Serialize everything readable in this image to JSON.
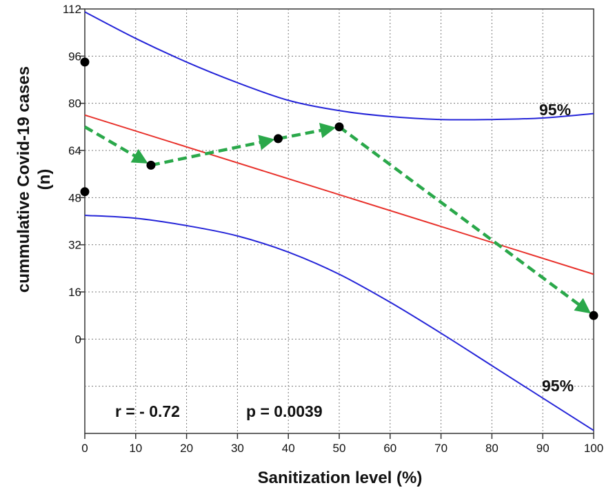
{
  "chart_data": {
    "type": "scatter",
    "xlabel": "Sanitization level (%)",
    "ylabel_lines": [
      "cummulative Covid-19 cases",
      "(n)"
    ],
    "xlim": [
      0,
      100
    ],
    "ylim": [
      -32,
      112
    ],
    "xticks": [
      0,
      10,
      20,
      30,
      40,
      50,
      60,
      70,
      80,
      90,
      100
    ],
    "yticks": [
      112,
      96,
      80,
      64,
      48,
      32,
      16,
      0
    ],
    "grid": true,
    "points": [
      {
        "x": 0,
        "y": 94
      },
      {
        "x": 0,
        "y": 50
      },
      {
        "x": 13,
        "y": 59
      },
      {
        "x": 38,
        "y": 68
      },
      {
        "x": 50,
        "y": 72
      },
      {
        "x": 100,
        "y": 8
      }
    ],
    "regression_line": {
      "color": "#e8302a",
      "points": [
        [
          0,
          76
        ],
        [
          100,
          22
        ]
      ]
    },
    "ci_upper": {
      "label": "95%",
      "color": "#2424d8",
      "points": [
        [
          0,
          111
        ],
        [
          10,
          102
        ],
        [
          20,
          94
        ],
        [
          30,
          87
        ],
        [
          40,
          81
        ],
        [
          50,
          77.5
        ],
        [
          60,
          75.5
        ],
        [
          70,
          74.5
        ],
        [
          80,
          74.5
        ],
        [
          90,
          75
        ],
        [
          100,
          76.5
        ]
      ]
    },
    "ci_lower": {
      "label": "95%",
      "color": "#2424d8",
      "points": [
        [
          0,
          42
        ],
        [
          10,
          41
        ],
        [
          20,
          38.5
        ],
        [
          30,
          35
        ],
        [
          40,
          29.5
        ],
        [
          50,
          22
        ],
        [
          60,
          12.5
        ],
        [
          70,
          2
        ],
        [
          80,
          -9
        ],
        [
          90,
          -20
        ],
        [
          100,
          -31
        ]
      ]
    },
    "trend_arrows": {
      "color": "#2aa84a",
      "segments": [
        [
          [
            0,
            72
          ],
          [
            13,
            59
          ]
        ],
        [
          [
            13,
            59
          ],
          [
            38,
            68
          ]
        ],
        [
          [
            38,
            68
          ],
          [
            50,
            72
          ]
        ],
        [
          [
            50,
            72
          ],
          [
            100,
            8
          ]
        ]
      ]
    },
    "annotations": {
      "r_text": "r = - 0.72",
      "p_text": "p = 0.0039"
    }
  }
}
